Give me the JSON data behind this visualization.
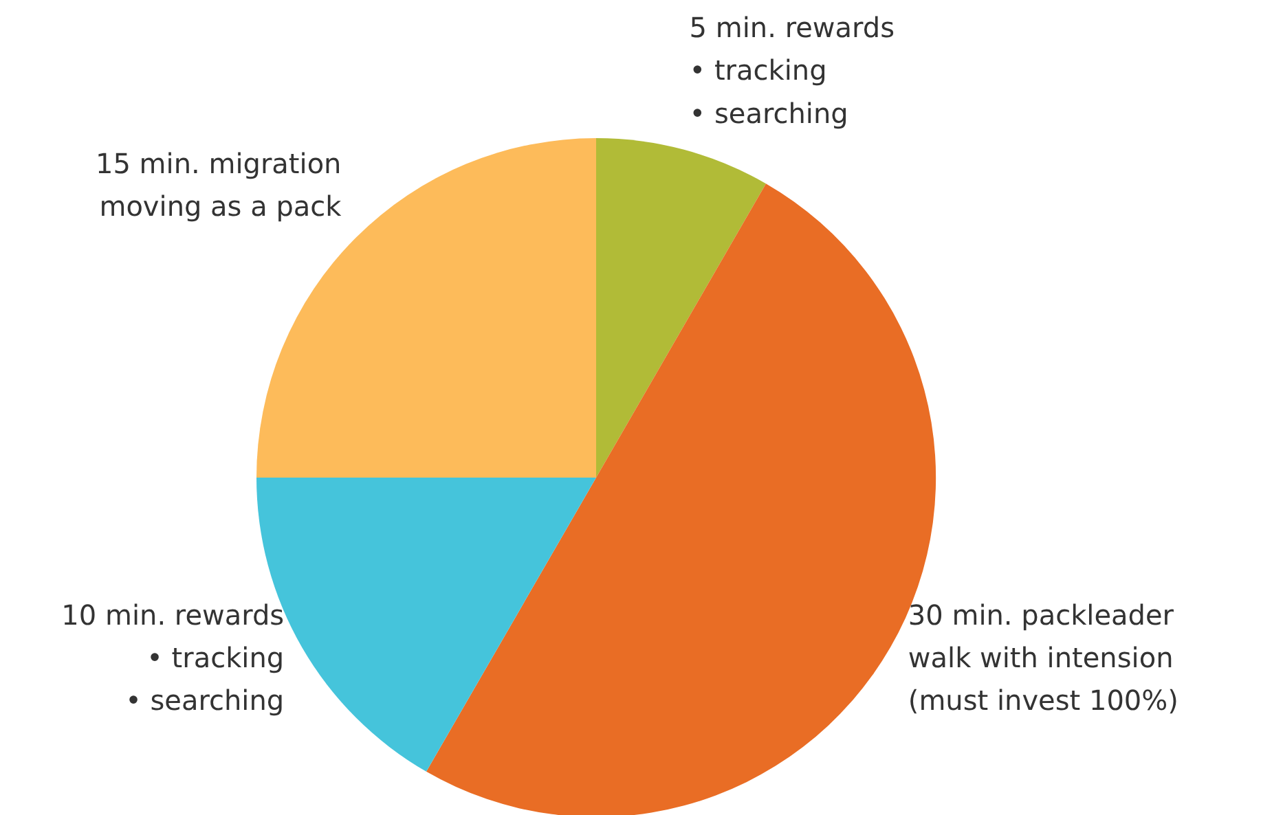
{
  "chart_data": {
    "type": "pie",
    "categories": [
      "5 min. rewards\n• tracking\n• searching",
      "30 min. packleader\nwalk with intension\n(must invest 100%)",
      "10 min. rewards\n• tracking\n• searching",
      "15 min. migration\nmoving as a pack"
    ],
    "values": [
      5,
      30,
      10,
      15
    ],
    "colors": [
      "#b1bb37",
      "#e96d25",
      "#45c4db",
      "#fdbb5a"
    ]
  }
}
